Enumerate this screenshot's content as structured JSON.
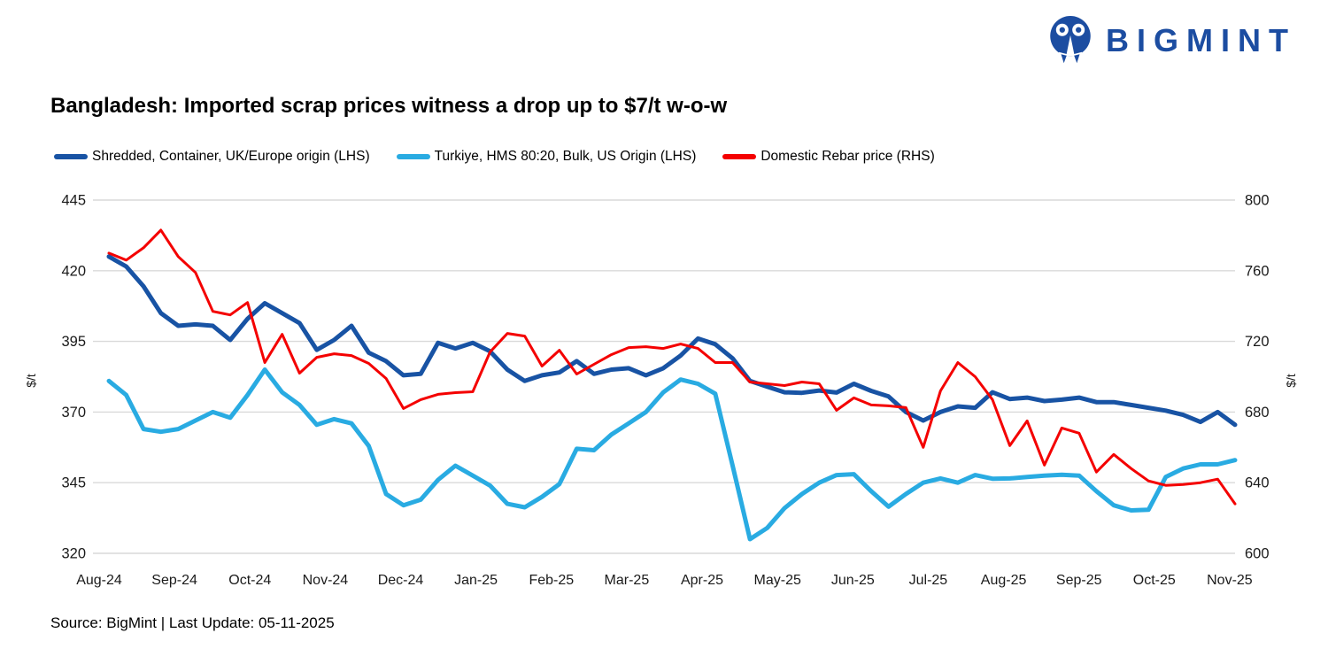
{
  "logo": {
    "text": "BIGMINT",
    "color": "#1C4DA1"
  },
  "header": {
    "title": "Bangladesh: Imported scrap prices witness a drop up to $7/t w-o-w"
  },
  "legend": [
    {
      "label": "Shredded, Container, UK/Europe origin (LHS)",
      "color": "#1853A4"
    },
    {
      "label": "Turkiye, HMS 80:20, Bulk, US Origin (LHS)",
      "color": "#29ABE2"
    },
    {
      "label": "Domestic Rebar price (RHS)",
      "color": "#F40000"
    }
  ],
  "footer": {
    "source": "Source: BigMint | Last Update: 05-11-2025"
  },
  "chart_data": {
    "type": "line",
    "title": "Bangladesh: Imported scrap prices witness a drop up to $7/t w-o-w",
    "grid": true,
    "legend_position": "top",
    "gridline_color": "#d9d9d9",
    "x_tick_labels": [
      "Aug-24",
      "Sep-24",
      "Oct-24",
      "Nov-24",
      "Dec-24",
      "Jan-25",
      "Feb-25",
      "Mar-25",
      "Apr-25",
      "May-25",
      "Jun-25",
      "Jul-25",
      "Aug-25",
      "Sep-25",
      "Oct-25",
      "Nov-25"
    ],
    "left_axis": {
      "label": "$/t",
      "range": [
        320,
        445
      ],
      "ticks": [
        445,
        420,
        395,
        370,
        345,
        320
      ]
    },
    "right_axis": {
      "label": "$/t",
      "range": [
        600,
        800
      ],
      "ticks": [
        800,
        760,
        720,
        680,
        640,
        600
      ]
    },
    "series": [
      {
        "name": "Shredded, Container, UK/Europe origin (LHS)",
        "axis": "left",
        "color": "#1853A4",
        "width": 5,
        "values": [
          425,
          421.5,
          414.5,
          405,
          400.5,
          401,
          400.5,
          395.5,
          403,
          408.5,
          405,
          401.5,
          392,
          395.5,
          400.5,
          391,
          388,
          383,
          383.5,
          394.5,
          392.5,
          394.5,
          391.5,
          385,
          381,
          383,
          384,
          388,
          383.5,
          385,
          385.5,
          383,
          385.5,
          390,
          396,
          394,
          389,
          381,
          379,
          377,
          376.8,
          377.6,
          376.9,
          380,
          377.5,
          375.5,
          370,
          367,
          370,
          372,
          371.5,
          377,
          374.6,
          375.1,
          373.9,
          374.4,
          375.1,
          373.5,
          373.5,
          372.5,
          371.5,
          370.5,
          369,
          366.5,
          370,
          365.5
        ]
      },
      {
        "name": "Turkiye, HMS 80:20, Bulk, US Origin (LHS)",
        "axis": "left",
        "color": "#29ABE2",
        "width": 5,
        "values": [
          381,
          376,
          364,
          363,
          364,
          367,
          370,
          368,
          376,
          385,
          377,
          372.5,
          365.5,
          367.5,
          366,
          358,
          341,
          337,
          339,
          346,
          351,
          347.5,
          344,
          337.5,
          336.3,
          340,
          344.5,
          357,
          356.5,
          362,
          366,
          370,
          377,
          381.5,
          380,
          376.5,
          351,
          325,
          329,
          336,
          341,
          345,
          347.7,
          348,
          342,
          336.5,
          341,
          345,
          346.5,
          345,
          347.7,
          346.4,
          346.5,
          347,
          347.5,
          347.8,
          347.5,
          342,
          337,
          335.2,
          335.4,
          347,
          350,
          351.5,
          351.5,
          353
        ]
      },
      {
        "name": "Domestic Rebar price (RHS)",
        "axis": "right",
        "color": "#F40000",
        "width": 3,
        "values": [
          770,
          766,
          773,
          783,
          768,
          759,
          737,
          735,
          742,
          708,
          724,
          702,
          711,
          713,
          712,
          707.5,
          699,
          682,
          687,
          690,
          691,
          691.5,
          714,
          724.5,
          723,
          706,
          715,
          701.5,
          707,
          712.5,
          716.5,
          717,
          716,
          718.5,
          716,
          708,
          708,
          697,
          696,
          695,
          697,
          696,
          681,
          688,
          684,
          683.5,
          682.5,
          660,
          692,
          708,
          700,
          687,
          661,
          675,
          650,
          671,
          668,
          646,
          656,
          648,
          641,
          638.5,
          639,
          640,
          642,
          628
        ]
      }
    ]
  }
}
